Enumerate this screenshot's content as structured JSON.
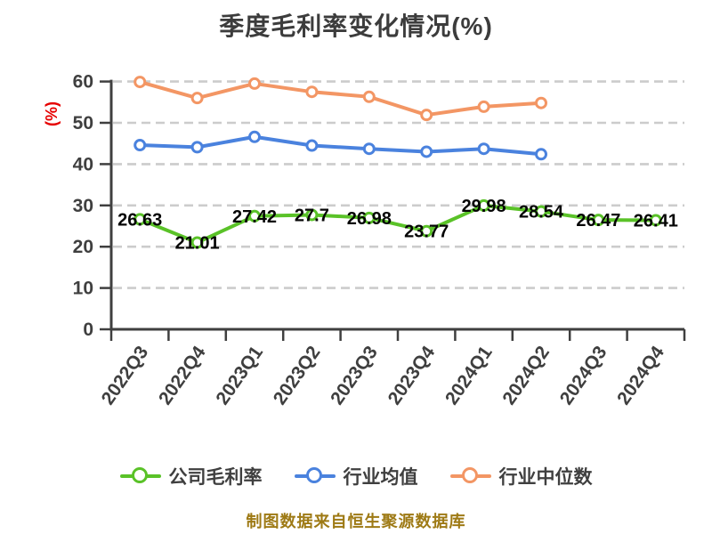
{
  "page": {
    "title": "季度毛利率变化情况(%)",
    "footer_note": "制图数据来自恒生聚源数据库",
    "background": "#ffffff"
  },
  "colors": {
    "title_text": "#3c3c3c",
    "axis_text": "#3f3f3f",
    "axis_line": "#3f3f3f",
    "grid_line": "#cccccc",
    "y_unit_label": "#e60000",
    "data_label": "#050505",
    "legend_text": "#3f3f3f",
    "footer_text": "#9e7a15",
    "company_series": "#5ac228",
    "industry_mean_series": "#4a82de",
    "industry_median_series": "#f39664"
  },
  "chart_data": {
    "type": "line",
    "title": "季度毛利率变化情况(%)",
    "xlabel": "",
    "ylabel": "(%)",
    "ylim": [
      0,
      60
    ],
    "yticks": [
      0,
      10,
      20,
      30,
      40,
      50,
      60
    ],
    "grid": "horizontal-dashed",
    "legend_position": "bottom",
    "categories": [
      "2022Q3",
      "2022Q4",
      "2023Q1",
      "2023Q2",
      "2023Q3",
      "2023Q4",
      "2024Q1",
      "2024Q2",
      "2024Q3",
      "2024Q4"
    ],
    "series": [
      {
        "name": "公司毛利率",
        "color": "#5ac228",
        "show_point_labels": true,
        "values": [
          26.63,
          21.01,
          27.42,
          27.7,
          26.98,
          23.77,
          29.98,
          28.54,
          26.47,
          26.41
        ],
        "point_labels": [
          "26.63",
          "21.01",
          "27.42",
          "27.7",
          "26.98",
          "23.77",
          "29.98",
          "28.54",
          "26.47",
          "26.41"
        ]
      },
      {
        "name": "行业均值",
        "color": "#4a82de",
        "show_point_labels": false,
        "values": [
          44.6,
          44.1,
          46.6,
          44.5,
          43.7,
          43.0,
          43.7,
          42.4,
          null,
          null
        ]
      },
      {
        "name": "行业中位数",
        "color": "#f39664",
        "show_point_labels": false,
        "values": [
          59.9,
          56.0,
          59.5,
          57.5,
          56.3,
          51.9,
          53.9,
          54.8,
          null,
          null
        ]
      }
    ]
  }
}
